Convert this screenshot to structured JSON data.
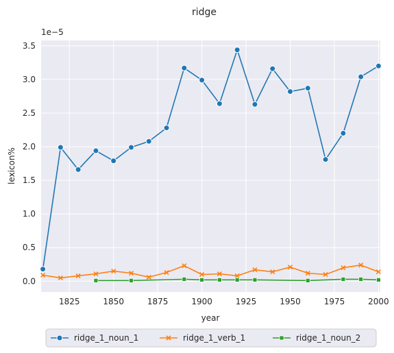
{
  "chart_data": {
    "type": "line",
    "title": "ridge",
    "xlabel": "year",
    "ylabel": "lexicon%",
    "y_multiplier_label": "1e−5",
    "xlim": [
      1809,
      2001
    ],
    "ylim": [
      -0.16,
      3.58
    ],
    "xticks": [
      1825,
      1850,
      1875,
      1900,
      1925,
      1950,
      1975,
      2000
    ],
    "yticks": [
      0.0,
      0.5,
      1.0,
      1.5,
      2.0,
      2.5,
      3.0,
      3.5
    ],
    "ytick_labels": [
      "0.0",
      "0.5",
      "1.0",
      "1.5",
      "2.0",
      "2.5",
      "3.0",
      "3.5"
    ],
    "grid": true,
    "legend_position": "bottom-center",
    "series": [
      {
        "name": "ridge_1_noun_1",
        "color": "#1f77b4",
        "marker": "circle",
        "x": [
          1810,
          1820,
          1830,
          1840,
          1850,
          1860,
          1870,
          1880,
          1890,
          1900,
          1910,
          1920,
          1930,
          1940,
          1950,
          1960,
          1970,
          1980,
          1990,
          2000
        ],
        "y": [
          0.18,
          1.99,
          1.66,
          1.94,
          1.79,
          1.99,
          2.08,
          2.28,
          3.17,
          2.99,
          2.64,
          3.44,
          2.63,
          3.16,
          2.82,
          2.87,
          1.81,
          2.2,
          3.04,
          3.2
        ]
      },
      {
        "name": "ridge_1_verb_1",
        "color": "#ff7f0e",
        "marker": "x",
        "x": [
          1810,
          1820,
          1830,
          1840,
          1850,
          1860,
          1870,
          1880,
          1890,
          1900,
          1910,
          1920,
          1930,
          1940,
          1950,
          1960,
          1970,
          1980,
          1990,
          2000
        ],
        "y": [
          0.09,
          0.05,
          0.08,
          0.11,
          0.15,
          0.12,
          0.06,
          0.13,
          0.23,
          0.1,
          0.11,
          0.08,
          0.17,
          0.14,
          0.21,
          0.12,
          0.1,
          0.2,
          0.24,
          0.14
        ]
      },
      {
        "name": "ridge_1_noun_2",
        "color": "#2ca02c",
        "marker": "square",
        "x": [
          1840,
          1860,
          1890,
          1900,
          1910,
          1920,
          1930,
          1960,
          1980,
          1990,
          2000
        ],
        "y": [
          0.01,
          0.01,
          0.03,
          0.02,
          0.02,
          0.02,
          0.02,
          0.01,
          0.03,
          0.03,
          0.02
        ]
      }
    ]
  }
}
